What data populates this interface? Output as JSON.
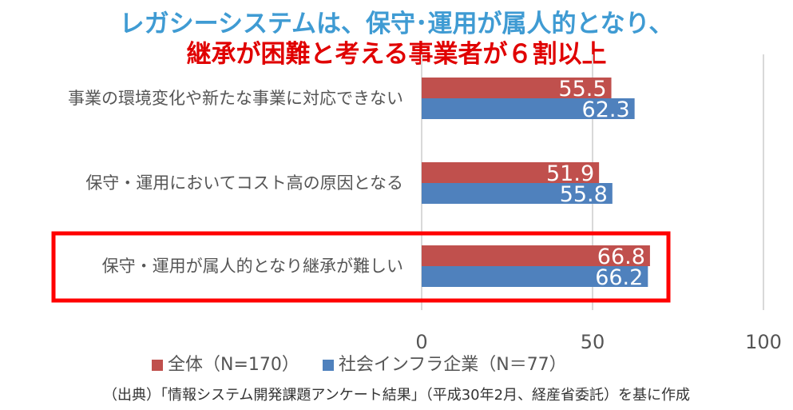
{
  "title_line1": "レガシーシステムは、保守･運用が属人的となり、",
  "title_line2": "継承が困難と考える事業者が６割以上",
  "source": "（出典）「情報システム開発課題アンケート結果」（平成30年2月、経産省委託）を基に作成",
  "chart_data": {
    "type": "bar",
    "orientation": "horizontal",
    "categories": [
      "事業の環境変化や新たな事業に対応できない",
      "保守・運用においてコスト高の原因となる",
      "保守・運用が属人的となり継承が難しい"
    ],
    "series": [
      {
        "name": "全体（N=170）",
        "values": [
          55.5,
          51.9,
          66.8
        ],
        "color": "#c0504d"
      },
      {
        "name": "社会インフラ企業（N＝77）",
        "values": [
          62.3,
          55.8,
          66.2
        ],
        "color": "#4f81bd"
      }
    ],
    "xlim": [
      0,
      100
    ],
    "xticks": [
      "0",
      "50",
      "100"
    ],
    "highlight_category": "保守・運用が属人的となり継承が難しい",
    "highlight_color": "#ff0000",
    "grid": true,
    "legend": "bottom"
  }
}
